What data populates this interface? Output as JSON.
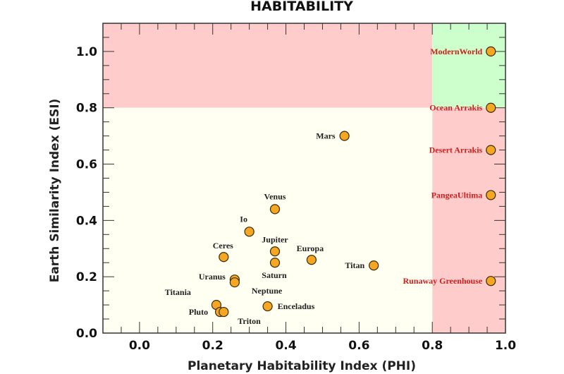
{
  "chart_data": {
    "type": "scatter",
    "title": "HABITABILITY",
    "xlabel": "Planetary Habitability Index (PHI)",
    "ylabel": "Earth Similarity Index (ESI)",
    "xlim": [
      -0.1,
      1.0
    ],
    "ylim": [
      0.0,
      1.1
    ],
    "xticks": [
      "0.0",
      "0.2",
      "0.4",
      "0.6",
      "0.8",
      "1.0"
    ],
    "yticks": [
      "0.0",
      "0.2",
      "0.4",
      "0.6",
      "0.8",
      "1.0"
    ],
    "grid": false,
    "regions": [
      {
        "x": [
          -0.1,
          0.8
        ],
        "y": [
          0.8,
          1.1
        ],
        "color": "#ffcccc"
      },
      {
        "x": [
          0.8,
          1.0
        ],
        "y": [
          0.8,
          1.1
        ],
        "color": "#ccffcc"
      },
      {
        "x": [
          0.8,
          1.0
        ],
        "y": [
          0.0,
          0.8
        ],
        "color": "#ffcccc"
      },
      {
        "x": [
          -0.1,
          0.8
        ],
        "y": [
          0.0,
          0.8
        ],
        "color": "#fffff2"
      }
    ],
    "marker_color": "#f5a623",
    "points": [
      {
        "label": "Mars",
        "x": 0.56,
        "y": 0.7,
        "color": "#222222"
      },
      {
        "label": "Venus",
        "x": 0.37,
        "y": 0.44,
        "color": "#222222"
      },
      {
        "label": "Io",
        "x": 0.3,
        "y": 0.36,
        "color": "#222222"
      },
      {
        "label": "Jupiter",
        "x": 0.37,
        "y": 0.29,
        "color": "#222222"
      },
      {
        "label": "Ceres",
        "x": 0.23,
        "y": 0.27,
        "color": "#222222"
      },
      {
        "label": "Saturn",
        "x": 0.37,
        "y": 0.25,
        "color": "#222222"
      },
      {
        "label": "Europa",
        "x": 0.47,
        "y": 0.26,
        "color": "#222222"
      },
      {
        "label": "Titan",
        "x": 0.64,
        "y": 0.24,
        "color": "#222222"
      },
      {
        "label": "Uranus",
        "x": 0.26,
        "y": 0.19,
        "color": "#222222"
      },
      {
        "label": "Neptune",
        "x": 0.26,
        "y": 0.18,
        "color": "#222222"
      },
      {
        "label": "Titania",
        "x": 0.21,
        "y": 0.1,
        "color": "#222222"
      },
      {
        "label": "Pluto",
        "x": 0.22,
        "y": 0.075,
        "color": "#222222"
      },
      {
        "label": "Triton",
        "x": 0.23,
        "y": 0.075,
        "color": "#222222"
      },
      {
        "label": "Enceladus",
        "x": 0.35,
        "y": 0.095,
        "color": "#222222"
      },
      {
        "label": "ModernWorld",
        "x": 0.96,
        "y": 1.0,
        "color": "#cc1f1f"
      },
      {
        "label": "Ocean Arrakis",
        "x": 0.96,
        "y": 0.8,
        "color": "#cc1f1f"
      },
      {
        "label": "Desert Arrakis",
        "x": 0.96,
        "y": 0.65,
        "color": "#cc1f1f"
      },
      {
        "label": "PangeaUltima",
        "x": 0.96,
        "y": 0.49,
        "color": "#cc1f1f"
      },
      {
        "label": "Runaway Greenhouse",
        "x": 0.96,
        "y": 0.185,
        "color": "#cc1f1f"
      }
    ]
  }
}
